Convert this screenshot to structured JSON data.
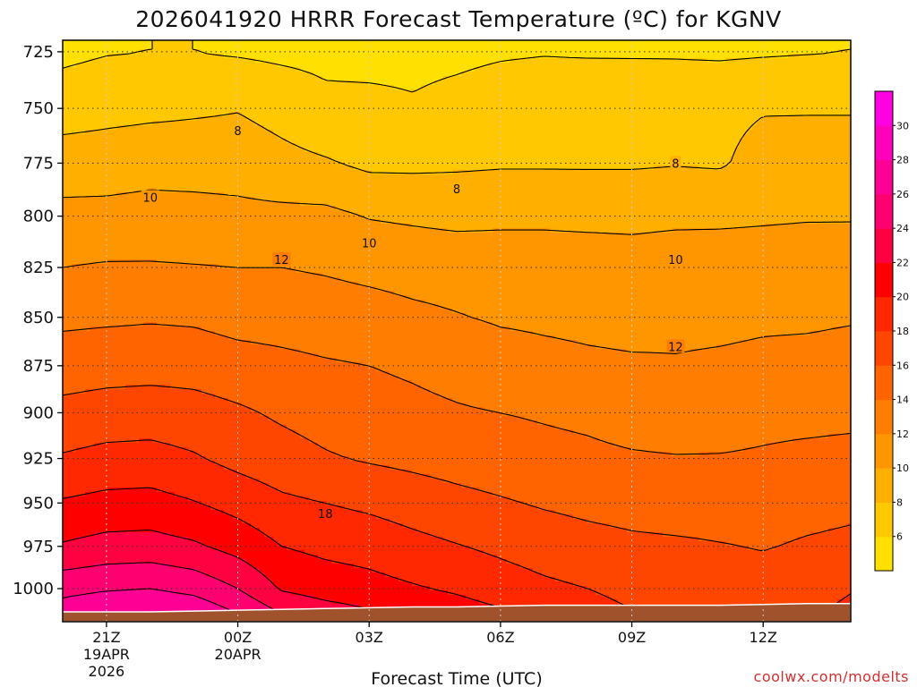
{
  "chart_data": {
    "type": "heatmap",
    "title": "2026041920 HRRR Forecast Temperature (ºC) for KGNV",
    "xlabel": "Forecast Time (UTC)",
    "ylabel": "",
    "x_ticks": [
      {
        "hour": 1,
        "lines": [
          "21Z",
          "19APR",
          "2026"
        ]
      },
      {
        "hour": 4,
        "lines": [
          "00Z",
          "20APR"
        ]
      },
      {
        "hour": 7,
        "lines": [
          "03Z"
        ]
      },
      {
        "hour": 10,
        "lines": [
          "06Z"
        ]
      },
      {
        "hour": 13,
        "lines": [
          "09Z"
        ]
      },
      {
        "hour": 16,
        "lines": [
          "12Z"
        ]
      }
    ],
    "xlim": [
      0,
      18
    ],
    "y_ticks": [
      725,
      750,
      775,
      800,
      825,
      850,
      875,
      900,
      925,
      950,
      975,
      1000
    ],
    "ylim": [
      720,
      1020
    ],
    "y_scale": "log",
    "grid": true,
    "colorbar": {
      "ticks": [
        6,
        8,
        10,
        12,
        14,
        16,
        18,
        20,
        22,
        24,
        26,
        28,
        30
      ],
      "levels": [
        4,
        6,
        8,
        10,
        12,
        14,
        16,
        18,
        20,
        22,
        24,
        26,
        28,
        30,
        32
      ],
      "colors": [
        "#ffe000",
        "#ffc800",
        "#ffaf00",
        "#ff9600",
        "#ff7d00",
        "#ff6400",
        "#ff4600",
        "#ff2800",
        "#ff0000",
        "#ff0040",
        "#ff0070",
        "#ff0095",
        "#ff00bb",
        "#ff00e0"
      ]
    },
    "hours": [
      0,
      1,
      2,
      3,
      4,
      5,
      6,
      7,
      8,
      9,
      10,
      11,
      12,
      13,
      14,
      15,
      16,
      17,
      18
    ],
    "levels_hpa": [
      725,
      750,
      775,
      800,
      825,
      850,
      875,
      900,
      925,
      950,
      975,
      1000,
      1015
    ],
    "temperature": [
      [
        5.6,
        5.9,
        6.0,
        6.0,
        5.8,
        5.6,
        5.5,
        5.4,
        5.5,
        5.6,
        5.8,
        5.9,
        5.8,
        5.8,
        5.8,
        5.7,
        5.8,
        5.9,
        6.0
      ],
      [
        7.0,
        7.3,
        7.5,
        7.7,
        7.9,
        7.3,
        6.5,
        6.5,
        6.2,
        6.6,
        7.0,
        7.2,
        7.6,
        7.5,
        7.4,
        7.6,
        7.9,
        7.9,
        7.9
      ],
      [
        9.1,
        9.2,
        9.4,
        9.3,
        9.2,
        8.6,
        8.2,
        7.6,
        7.6,
        7.7,
        7.8,
        7.8,
        7.8,
        7.8,
        7.9,
        7.8,
        8.6,
        8.7,
        8.7
      ],
      [
        10.5,
        10.5,
        10.6,
        10.6,
        10.5,
        10.5,
        10.5,
        9.9,
        9.7,
        9.5,
        9.6,
        9.6,
        9.5,
        9.5,
        9.6,
        9.6,
        9.7,
        9.8,
        9.8
      ],
      [
        12.0,
        12.2,
        12.2,
        12.1,
        12.0,
        12.0,
        11.8,
        11.5,
        11.3,
        11.2,
        11.1,
        11.1,
        11.1,
        10.9,
        11.1,
        11.2,
        11.3,
        11.5,
        11.6
      ],
      [
        13.6,
        13.7,
        13.8,
        13.7,
        13.3,
        13.2,
        13.0,
        12.8,
        12.4,
        12.1,
        11.8,
        11.7,
        11.6,
        11.5,
        11.7,
        11.7,
        11.8,
        11.8,
        11.9
      ],
      [
        15.0,
        15.2,
        15.3,
        15.2,
        14.8,
        14.5,
        14.2,
        14.0,
        13.7,
        13.3,
        12.8,
        12.5,
        12.3,
        12.2,
        12.1,
        12.2,
        12.3,
        12.4,
        12.5
      ],
      [
        16.6,
        16.9,
        17.0,
        16.8,
        16.3,
        15.7,
        15.2,
        14.8,
        14.5,
        14.2,
        14.0,
        13.8,
        13.6,
        13.2,
        13.0,
        13.2,
        13.5,
        13.5,
        13.6
      ],
      [
        18.2,
        18.6,
        18.7,
        18.2,
        17.4,
        16.8,
        16.2,
        15.8,
        15.5,
        15.2,
        14.9,
        14.6,
        14.4,
        14.2,
        14.1,
        14.1,
        14.2,
        14.4,
        14.5
      ],
      [
        20.2,
        20.6,
        20.7,
        20.1,
        19.3,
        18.4,
        18.0,
        17.6,
        17.1,
        16.6,
        16.2,
        15.8,
        15.5,
        15.3,
        15.1,
        15.1,
        15.2,
        15.4,
        15.6
      ],
      [
        22.2,
        22.7,
        22.8,
        22.3,
        21.3,
        20.0,
        19.5,
        19.2,
        18.6,
        18.1,
        17.6,
        17.1,
        16.7,
        16.4,
        16.3,
        16.1,
        15.9,
        16.2,
        16.4
      ],
      [
        25.4,
        25.8,
        26.0,
        25.4,
        24.0,
        21.8,
        21.1,
        20.7,
        20.2,
        19.7,
        19.0,
        18.4,
        18.0,
        17.5,
        17.2,
        16.9,
        16.8,
        17.3,
        17.9
      ],
      [
        27.0,
        27.8,
        28.1,
        27.6,
        26.0,
        24.0,
        23.0,
        22.3,
        21.7,
        21.0,
        20.3,
        19.4,
        18.7,
        18.1,
        17.7,
        17.4,
        17.2,
        17.8,
        18.4
      ]
    ],
    "contour_labels": [
      {
        "text": "8",
        "hour": 4.0,
        "hpa": 760
      },
      {
        "text": "8",
        "hour": 9.0,
        "hpa": 787
      },
      {
        "text": "8",
        "hour": 14.0,
        "hpa": 775
      },
      {
        "text": "10",
        "hour": 2.0,
        "hpa": 791
      },
      {
        "text": "10",
        "hour": 7.0,
        "hpa": 813
      },
      {
        "text": "10",
        "hour": 14.0,
        "hpa": 821
      },
      {
        "text": "12",
        "hour": 5.0,
        "hpa": 821
      },
      {
        "text": "12",
        "hour": 14.0,
        "hpa": 865
      },
      {
        "text": "18",
        "hour": 6.0,
        "hpa": 956
      }
    ],
    "surface_hpa": [
      1014,
      1014,
      1014,
      1013.5,
      1013,
      1012.5,
      1012,
      1011.5,
      1011,
      1011,
      1010.5,
      1010,
      1010,
      1010,
      1010,
      1010,
      1009.5,
      1009,
      1009
    ]
  },
  "watermark": "coolwx.com/modelts",
  "colors": {
    "ground": "#a0522d",
    "grid": "#888888",
    "frame": "#000000"
  }
}
